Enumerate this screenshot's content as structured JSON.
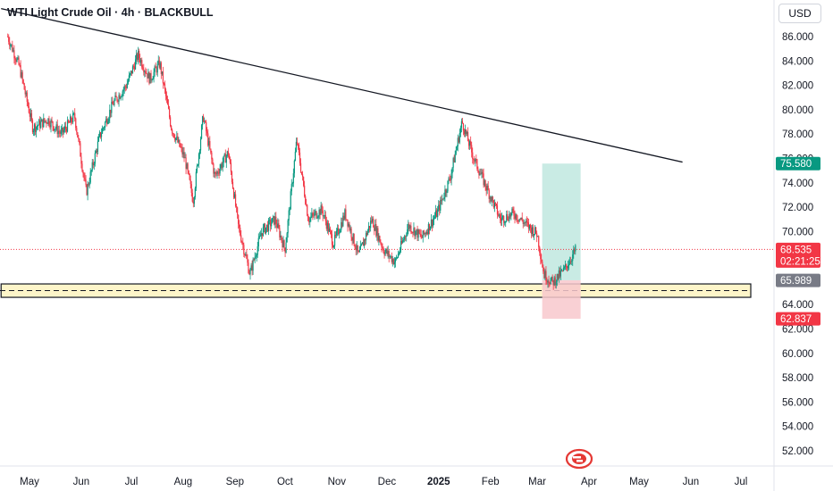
{
  "header": {
    "title": "WTI Light Crude Oil · 4h · BLACKBULL",
    "currency": "USD"
  },
  "colors": {
    "up": "#089981",
    "down": "#f23645",
    "profit_zone": "#bfe7df",
    "loss_zone": "#f8c8cc",
    "support_zone": "#fdf5c9",
    "trendline": "#131722",
    "current_price_line": "#f23645",
    "logo": "#e53935"
  },
  "chart_data": {
    "type": "candlestick",
    "y_ticks": [
      "86.000",
      "84.000",
      "82.000",
      "80.000",
      "78.000",
      "76.000",
      "74.000",
      "72.000",
      "70.000",
      "68.000",
      "66.000",
      "64.000",
      "62.000",
      "60.000",
      "58.000",
      "56.000",
      "54.000",
      "52.000"
    ],
    "x_labels": [
      {
        "label": "May",
        "bold": false,
        "date": "2024-05-01"
      },
      {
        "label": "Jun",
        "bold": false,
        "date": "2024-06-01"
      },
      {
        "label": "Jul",
        "bold": false,
        "date": "2024-07-01"
      },
      {
        "label": "Aug",
        "bold": false,
        "date": "2024-08-01"
      },
      {
        "label": "Sep",
        "bold": false,
        "date": "2024-09-01"
      },
      {
        "label": "Oct",
        "bold": false,
        "date": "2024-10-01"
      },
      {
        "label": "Nov",
        "bold": false,
        "date": "2024-11-01"
      },
      {
        "label": "Dec",
        "bold": false,
        "date": "2024-12-01"
      },
      {
        "label": "2025",
        "bold": true,
        "date": "2025-01-01"
      },
      {
        "label": "Feb",
        "bold": false,
        "date": "2025-02-01"
      },
      {
        "label": "Mar",
        "bold": false,
        "date": "2025-03-01"
      },
      {
        "label": "Apr",
        "bold": false,
        "date": "2025-04-01"
      },
      {
        "label": "May",
        "bold": false,
        "date": "2025-05-01"
      },
      {
        "label": "Jun",
        "bold": false,
        "date": "2025-06-01"
      },
      {
        "label": "Jul",
        "bold": false,
        "date": "2025-07-01"
      }
    ],
    "price_path": [
      [
        "2024-04-18",
        86.0
      ],
      [
        "2024-04-25",
        83.5
      ],
      [
        "2024-05-03",
        78.5
      ],
      [
        "2024-05-12",
        79.2
      ],
      [
        "2024-05-20",
        78.0
      ],
      [
        "2024-05-28",
        79.5
      ],
      [
        "2024-06-04",
        73.2
      ],
      [
        "2024-06-12",
        77.8
      ],
      [
        "2024-06-20",
        80.5
      ],
      [
        "2024-06-28",
        82.0
      ],
      [
        "2024-07-05",
        84.5
      ],
      [
        "2024-07-12",
        82.5
      ],
      [
        "2024-07-18",
        83.8
      ],
      [
        "2024-07-25",
        78.5
      ],
      [
        "2024-08-02",
        76.0
      ],
      [
        "2024-08-07",
        72.5
      ],
      [
        "2024-08-13",
        79.5
      ],
      [
        "2024-08-20",
        74.5
      ],
      [
        "2024-08-28",
        76.5
      ],
      [
        "2024-09-03",
        70.5
      ],
      [
        "2024-09-10",
        66.5
      ],
      [
        "2024-09-17",
        70.0
      ],
      [
        "2024-09-25",
        71.0
      ],
      [
        "2024-10-01",
        68.5
      ],
      [
        "2024-10-08",
        77.5
      ],
      [
        "2024-10-15",
        71.0
      ],
      [
        "2024-10-23",
        71.8
      ],
      [
        "2024-10-30",
        69.0
      ],
      [
        "2024-11-06",
        71.5
      ],
      [
        "2024-11-14",
        68.0
      ],
      [
        "2024-11-22",
        71.0
      ],
      [
        "2024-11-29",
        68.5
      ],
      [
        "2024-12-06",
        67.5
      ],
      [
        "2024-12-14",
        70.5
      ],
      [
        "2024-12-22",
        69.5
      ],
      [
        "2024-12-31",
        71.5
      ],
      [
        "2025-01-08",
        74.5
      ],
      [
        "2025-01-15",
        79.0
      ],
      [
        "2025-01-22",
        76.0
      ],
      [
        "2025-01-30",
        73.5
      ],
      [
        "2025-02-07",
        71.0
      ],
      [
        "2025-02-15",
        71.5
      ],
      [
        "2025-02-23",
        70.5
      ],
      [
        "2025-03-01",
        69.8
      ],
      [
        "2025-03-05",
        66.5
      ],
      [
        "2025-03-10",
        65.8
      ],
      [
        "2025-03-17",
        66.8
      ],
      [
        "2025-03-24",
        68.5
      ]
    ],
    "support_zone": {
      "from": "2024-04-14",
      "to": "2025-07-01",
      "low": 64.6,
      "high": 65.7,
      "level": 65.15
    },
    "trendline": {
      "start": {
        "date": "2024-04-14",
        "price": 88.3
      },
      "end": {
        "date": "2025-05-27",
        "price": 75.7
      }
    },
    "position": {
      "entry": 66.0,
      "target": 75.58,
      "stop": 62.837,
      "start": "2025-03-04",
      "end": "2025-03-27"
    },
    "current_price": 68.535,
    "price_tags": [
      {
        "label": "75.580",
        "value": 75.58,
        "color": "#089981"
      },
      {
        "label": "68.535",
        "value": 68.535,
        "color": "#f23645"
      },
      {
        "label": "65.989",
        "value": 65.989,
        "color": "#787b86"
      },
      {
        "label": "62.837",
        "value": 62.837,
        "color": "#f23645"
      }
    ],
    "countdown": "02:21:25"
  }
}
